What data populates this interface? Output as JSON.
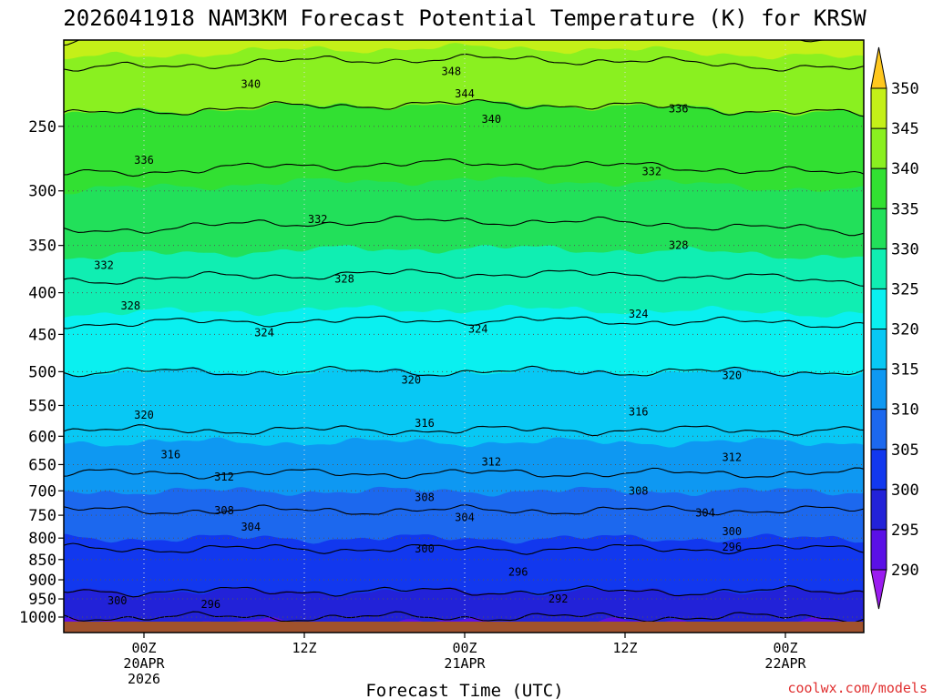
{
  "chart_data": {
    "type": "heatmap",
    "title": "2026041918 NAM3KM Forecast Potential Temperature (K) for KRSW",
    "xlabel": "Forecast Time (UTC)",
    "ylabel": "",
    "x_range_hours": [
      -5,
      55
    ],
    "x_ticks": [
      {
        "hour": 0,
        "lines": [
          "00Z",
          "20APR",
          "2026"
        ]
      },
      {
        "hour": 12,
        "lines": [
          "12Z"
        ]
      },
      {
        "hour": 24,
        "lines": [
          "00Z",
          "21APR"
        ]
      },
      {
        "hour": 36,
        "lines": [
          "12Z"
        ]
      },
      {
        "hour": 48,
        "lines": [
          "00Z",
          "22APR"
        ]
      }
    ],
    "y_range_hpa": [
      200,
      1020
    ],
    "y_ticks": [
      250,
      300,
      350,
      400,
      450,
      500,
      550,
      600,
      650,
      700,
      750,
      800,
      850,
      900,
      950,
      1000
    ],
    "colorbar": {
      "levels": [
        290,
        295,
        300,
        305,
        310,
        315,
        320,
        325,
        330,
        335,
        340,
        345,
        350
      ],
      "colors": [
        "#9b1cf0",
        "#5a10e6",
        "#2222d8",
        "#1238ee",
        "#1c68ee",
        "#0e98f2",
        "#08c8f4",
        "#0af0f0",
        "#10eeb2",
        "#22e05a",
        "#32e032",
        "#8af020",
        "#c4f018",
        "#ffff00",
        "#ffc81e"
      ]
    },
    "theta_profile": {
      "pressure_hpa": [
        1000,
        950,
        900,
        850,
        800,
        750,
        700,
        650,
        600,
        550,
        500,
        450,
        400,
        350,
        300,
        250,
        200
      ],
      "theta_k": [
        296,
        299,
        301.5,
        303,
        305,
        307.5,
        310,
        313,
        315.5,
        318,
        320,
        323,
        327,
        331,
        335,
        339,
        346
      ]
    },
    "contour_levels_k": [
      292,
      296,
      300,
      304,
      308,
      312,
      316,
      320,
      324,
      328,
      332,
      336,
      340,
      344,
      348
    ],
    "contour_labels": [
      {
        "text": "348",
        "hour": 23,
        "level": 214
      },
      {
        "text": "344",
        "hour": 24,
        "level": 228
      },
      {
        "text": "340",
        "hour": 8,
        "level": 222
      },
      {
        "text": "340",
        "hour": 26,
        "level": 245
      },
      {
        "text": "336",
        "hour": 40,
        "level": 238
      },
      {
        "text": "336",
        "hour": 0,
        "level": 275
      },
      {
        "text": "332",
        "hour": 38,
        "level": 284
      },
      {
        "text": "332",
        "hour": 13,
        "level": 325
      },
      {
        "text": "332",
        "hour": -3,
        "level": 370
      },
      {
        "text": "328",
        "hour": 40,
        "level": 350
      },
      {
        "text": "328",
        "hour": 15,
        "level": 385
      },
      {
        "text": "328",
        "hour": -1,
        "level": 415
      },
      {
        "text": "324",
        "hour": 37,
        "level": 425
      },
      {
        "text": "324",
        "hour": 25,
        "level": 443
      },
      {
        "text": "324",
        "hour": 9,
        "level": 448
      },
      {
        "text": "320",
        "hour": 44,
        "level": 505
      },
      {
        "text": "320",
        "hour": 20,
        "level": 512
      },
      {
        "text": "320",
        "hour": 0,
        "level": 565
      },
      {
        "text": "316",
        "hour": 37,
        "level": 560
      },
      {
        "text": "316",
        "hour": 21,
        "level": 578
      },
      {
        "text": "316",
        "hour": 2,
        "level": 632
      },
      {
        "text": "312",
        "hour": 44,
        "level": 637
      },
      {
        "text": "312",
        "hour": 26,
        "level": 645
      },
      {
        "text": "312",
        "hour": 6,
        "level": 673
      },
      {
        "text": "308",
        "hour": 37,
        "level": 700
      },
      {
        "text": "308",
        "hour": 21,
        "level": 713
      },
      {
        "text": "308",
        "hour": 6,
        "level": 740
      },
      {
        "text": "304",
        "hour": 42,
        "level": 745
      },
      {
        "text": "304",
        "hour": 24,
        "level": 755
      },
      {
        "text": "304",
        "hour": 8,
        "level": 775
      },
      {
        "text": "300",
        "hour": 44,
        "level": 785
      },
      {
        "text": "300",
        "hour": 21,
        "level": 825
      },
      {
        "text": "300",
        "hour": -2,
        "level": 955
      },
      {
        "text": "296",
        "hour": 44,
        "level": 820
      },
      {
        "text": "296",
        "hour": 28,
        "level": 880
      },
      {
        "text": "296",
        "hour": 5,
        "level": 965
      },
      {
        "text": "292",
        "hour": 31,
        "level": 950
      }
    ]
  },
  "credit": "coolwx.com/models",
  "colors": {
    "ground": "#a0522d",
    "credit": "#e03030",
    "contour": "#000000",
    "frame": "#000000"
  }
}
